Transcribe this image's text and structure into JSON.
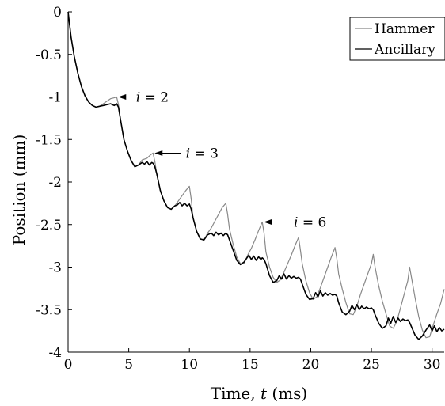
{
  "chart_data": {
    "type": "line",
    "title": "",
    "xlabel_prefix": "Time, ",
    "xlabel_var": "t",
    "xlabel_suffix": " (ms)",
    "ylabel": "Position (mm)",
    "xlim": [
      0,
      31
    ],
    "ylim": [
      -4,
      0
    ],
    "xticks": [
      0,
      5,
      10,
      15,
      20,
      25,
      30
    ],
    "xtick_labels": [
      "0",
      "5",
      "10",
      "15",
      "20",
      "25",
      "30"
    ],
    "yticks": [
      0,
      -0.5,
      -1,
      -1.5,
      -2,
      -2.5,
      -3,
      -3.5,
      -4
    ],
    "ytick_labels": [
      "0",
      "-0.5",
      "-1",
      "-1.5",
      "-2",
      "-2.5",
      "-3",
      "-3.5",
      "-4"
    ],
    "grid": false,
    "legend_position": "top-right",
    "series": [
      {
        "name": "Hammer",
        "color": "#888888",
        "x": [
          0,
          0.25,
          0.5,
          0.8,
          1.1,
          1.4,
          1.7,
          2.0,
          2.3,
          2.6,
          2.9,
          3.2,
          3.5,
          3.8,
          4.0,
          4.15,
          4.3,
          4.6,
          4.9,
          5.2,
          5.5,
          5.8,
          6.1,
          6.5,
          6.8,
          7.0,
          7.15,
          7.3,
          7.6,
          7.9,
          8.2,
          8.5,
          8.8,
          9.1,
          9.4,
          9.7,
          10.0,
          10.15,
          10.3,
          10.6,
          10.9,
          11.2,
          11.5,
          11.8,
          12.1,
          12.4,
          12.7,
          13.0,
          13.15,
          13.3,
          13.6,
          13.9,
          14.2,
          14.5,
          14.8,
          15.1,
          15.4,
          15.7,
          16.0,
          16.15,
          16.3,
          16.6,
          16.9,
          17.2,
          17.5,
          17.8,
          18.1,
          18.4,
          18.7,
          19.0,
          19.15,
          19.3,
          19.6,
          19.9,
          20.2,
          20.5,
          20.8,
          21.1,
          21.4,
          21.7,
          22.0,
          22.15,
          22.3,
          22.6,
          22.9,
          23.2,
          23.5,
          23.8,
          24.1,
          24.4,
          24.7,
          25.0,
          25.15,
          25.3,
          25.6,
          25.9,
          26.2,
          26.5,
          26.8,
          27.1,
          27.4,
          27.7,
          28.0,
          28.15,
          28.3,
          28.6,
          28.9,
          29.2,
          29.5,
          29.8,
          30.1,
          30.4,
          30.7,
          31.0
        ],
        "y": [
          0,
          -0.3,
          -0.52,
          -0.72,
          -0.88,
          -0.99,
          -1.06,
          -1.1,
          -1.12,
          -1.11,
          -1.08,
          -1.05,
          -1.02,
          -1.01,
          -1.0,
          -1.09,
          -1.25,
          -1.5,
          -1.64,
          -1.75,
          -1.82,
          -1.8,
          -1.74,
          -1.72,
          -1.68,
          -1.66,
          -1.76,
          -1.9,
          -2.1,
          -2.22,
          -2.3,
          -2.32,
          -2.28,
          -2.22,
          -2.16,
          -2.1,
          -2.05,
          -2.2,
          -2.42,
          -2.58,
          -2.67,
          -2.68,
          -2.6,
          -2.54,
          -2.46,
          -2.38,
          -2.3,
          -2.25,
          -2.38,
          -2.55,
          -2.73,
          -2.88,
          -2.96,
          -2.96,
          -2.86,
          -2.78,
          -2.68,
          -2.57,
          -2.47,
          -2.6,
          -2.82,
          -3.0,
          -3.12,
          -3.18,
          -3.15,
          -3.06,
          -2.96,
          -2.86,
          -2.75,
          -2.65,
          -2.8,
          -2.96,
          -3.16,
          -3.3,
          -3.38,
          -3.35,
          -3.24,
          -3.12,
          -3.0,
          -2.88,
          -2.77,
          -2.9,
          -3.08,
          -3.26,
          -3.42,
          -3.55,
          -3.56,
          -3.46,
          -3.32,
          -3.2,
          -3.08,
          -2.96,
          -2.85,
          -3.0,
          -3.22,
          -3.4,
          -3.55,
          -3.69,
          -3.72,
          -3.64,
          -3.48,
          -3.32,
          -3.16,
          -3.0,
          -3.12,
          -3.36,
          -3.58,
          -3.74,
          -3.83,
          -3.82,
          -3.68,
          -3.55,
          -3.43,
          -3.26
        ]
      },
      {
        "name": "Ancillary",
        "color": "#000000",
        "x": [
          0,
          0.25,
          0.5,
          0.8,
          1.1,
          1.4,
          1.7,
          2.0,
          2.3,
          2.6,
          2.9,
          3.2,
          3.5,
          3.8,
          4.0,
          4.15,
          4.3,
          4.6,
          4.9,
          5.2,
          5.5,
          5.8,
          6.1,
          6.3,
          6.5,
          6.7,
          6.9,
          7.0,
          7.15,
          7.3,
          7.6,
          7.9,
          8.2,
          8.5,
          8.8,
          9.0,
          9.2,
          9.4,
          9.6,
          9.8,
          10.0,
          10.15,
          10.3,
          10.6,
          10.9,
          11.2,
          11.5,
          11.8,
          12.0,
          12.2,
          12.4,
          12.6,
          12.8,
          13.0,
          13.15,
          13.3,
          13.6,
          13.9,
          14.2,
          14.5,
          14.7,
          14.9,
          15.1,
          15.3,
          15.5,
          15.7,
          15.9,
          16.0,
          16.15,
          16.3,
          16.6,
          16.9,
          17.2,
          17.4,
          17.6,
          17.8,
          18.0,
          18.2,
          18.4,
          18.6,
          18.8,
          19.0,
          19.15,
          19.3,
          19.6,
          19.9,
          20.2,
          20.4,
          20.6,
          20.8,
          21.0,
          21.2,
          21.4,
          21.6,
          21.8,
          22.0,
          22.15,
          22.3,
          22.6,
          22.9,
          23.2,
          23.4,
          23.6,
          23.8,
          24.0,
          24.2,
          24.4,
          24.6,
          24.8,
          25.0,
          25.15,
          25.3,
          25.6,
          25.9,
          26.2,
          26.4,
          26.6,
          26.8,
          27.0,
          27.2,
          27.4,
          27.6,
          27.8,
          28.0,
          28.15,
          28.3,
          28.6,
          28.9,
          29.2,
          29.5,
          29.8,
          30.0,
          30.2,
          30.4,
          30.6,
          30.8,
          31.0
        ],
        "y": [
          0,
          -0.3,
          -0.52,
          -0.72,
          -0.88,
          -0.99,
          -1.06,
          -1.1,
          -1.12,
          -1.11,
          -1.1,
          -1.09,
          -1.08,
          -1.1,
          -1.08,
          -1.12,
          -1.25,
          -1.5,
          -1.64,
          -1.75,
          -1.82,
          -1.8,
          -1.77,
          -1.79,
          -1.76,
          -1.8,
          -1.77,
          -1.78,
          -1.82,
          -1.9,
          -2.1,
          -2.22,
          -2.3,
          -2.32,
          -2.28,
          -2.27,
          -2.24,
          -2.28,
          -2.25,
          -2.28,
          -2.26,
          -2.32,
          -2.42,
          -2.58,
          -2.67,
          -2.68,
          -2.62,
          -2.6,
          -2.63,
          -2.59,
          -2.62,
          -2.6,
          -2.63,
          -2.6,
          -2.62,
          -2.68,
          -2.8,
          -2.92,
          -2.97,
          -2.94,
          -2.9,
          -2.86,
          -2.91,
          -2.87,
          -2.92,
          -2.88,
          -2.91,
          -2.89,
          -2.91,
          -2.96,
          -3.1,
          -3.18,
          -3.16,
          -3.1,
          -3.14,
          -3.08,
          -3.14,
          -3.1,
          -3.13,
          -3.11,
          -3.13,
          -3.12,
          -3.14,
          -3.2,
          -3.32,
          -3.38,
          -3.37,
          -3.3,
          -3.35,
          -3.28,
          -3.34,
          -3.3,
          -3.33,
          -3.31,
          -3.33,
          -3.32,
          -3.34,
          -3.42,
          -3.53,
          -3.56,
          -3.52,
          -3.45,
          -3.5,
          -3.44,
          -3.5,
          -3.46,
          -3.49,
          -3.47,
          -3.49,
          -3.48,
          -3.5,
          -3.56,
          -3.66,
          -3.72,
          -3.69,
          -3.6,
          -3.66,
          -3.58,
          -3.65,
          -3.6,
          -3.64,
          -3.61,
          -3.63,
          -3.62,
          -3.65,
          -3.7,
          -3.8,
          -3.85,
          -3.81,
          -3.74,
          -3.68,
          -3.75,
          -3.69,
          -3.76,
          -3.71,
          -3.75,
          -3.73
        ]
      }
    ],
    "annotations": [
      {
        "var": "i",
        "rest": " = 2",
        "point": [
          4.0,
          -1.0
        ],
        "text_at": [
          5.6,
          -1.0
        ]
      },
      {
        "var": "i",
        "rest": " = 3",
        "point": [
          7.0,
          -1.66
        ],
        "text_at": [
          9.7,
          -1.66
        ]
      },
      {
        "var": "i",
        "rest": " = 6",
        "point": [
          16.0,
          -2.47
        ],
        "text_at": [
          18.6,
          -2.47
        ]
      }
    ]
  }
}
